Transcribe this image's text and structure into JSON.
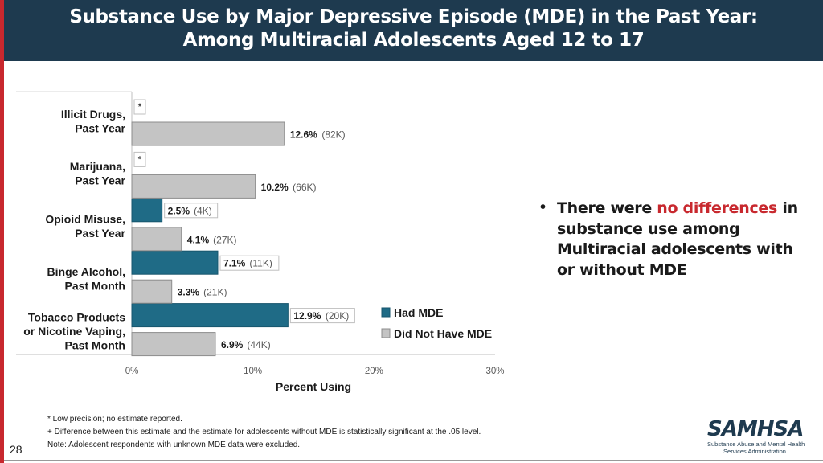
{
  "title": {
    "line1": "Substance Use by Major Depressive Episode (MDE) in the Past Year:",
    "line2": "Among Multiracial Adolescents Aged 12 to 17"
  },
  "colors": {
    "had_mde": "#1f6b86",
    "no_mde": "#c4c4c4",
    "header_bg": "#1e3a4f",
    "accent_red": "#c8282e"
  },
  "chart_data": {
    "type": "bar",
    "orientation": "horizontal",
    "categories": [
      [
        "Illicit Drugs,",
        "Past Year"
      ],
      [
        "Marijuana,",
        "Past Year"
      ],
      [
        "Opioid Misuse,",
        "Past Year"
      ],
      [
        "Binge Alcohol,",
        "Past Month"
      ],
      [
        "Tobacco Products",
        "or Nicotine Vaping,",
        "Past Month"
      ]
    ],
    "series": [
      {
        "name": "Had MDE",
        "values": [
          null,
          null,
          2.5,
          7.1,
          12.9
        ],
        "labels": [
          "*",
          "*",
          "2.5%",
          "7.1%",
          "12.9%"
        ],
        "counts": [
          "",
          "",
          "(4K)",
          "(11K)",
          "(20K)"
        ]
      },
      {
        "name": "Did Not Have MDE",
        "values": [
          12.6,
          10.2,
          4.1,
          3.3,
          6.9
        ],
        "labels": [
          "12.6%",
          "10.2%",
          "4.1%",
          "3.3%",
          "6.9%"
        ],
        "counts": [
          "(82K)",
          "(66K)",
          "(27K)",
          "(21K)",
          "(44K)"
        ]
      }
    ],
    "xlim": [
      0,
      30
    ],
    "xticks": [
      "0%",
      "10%",
      "20%",
      "30%"
    ],
    "xlabel": "Percent Using",
    "legend": [
      "Had MDE",
      "Did Not Have MDE"
    ],
    "legend_position": "right"
  },
  "bullet": {
    "prefix": "There were ",
    "highlight": "no differences",
    "suffix": " in substance use among Multiracial adolescents with or without MDE"
  },
  "footnotes": {
    "low_precision": "* Low precision; no estimate reported.",
    "difference": "+ Difference between this estimate and the estimate for adolescents without MDE is statistically significant at the .05 level.",
    "note": "Note: Adolescent respondents with unknown MDE data were excluded."
  },
  "page_number": "28",
  "logo": {
    "wordmark": "SAMHSA",
    "line1": "Substance Abuse and Mental Health",
    "line2": "Services Administration"
  }
}
